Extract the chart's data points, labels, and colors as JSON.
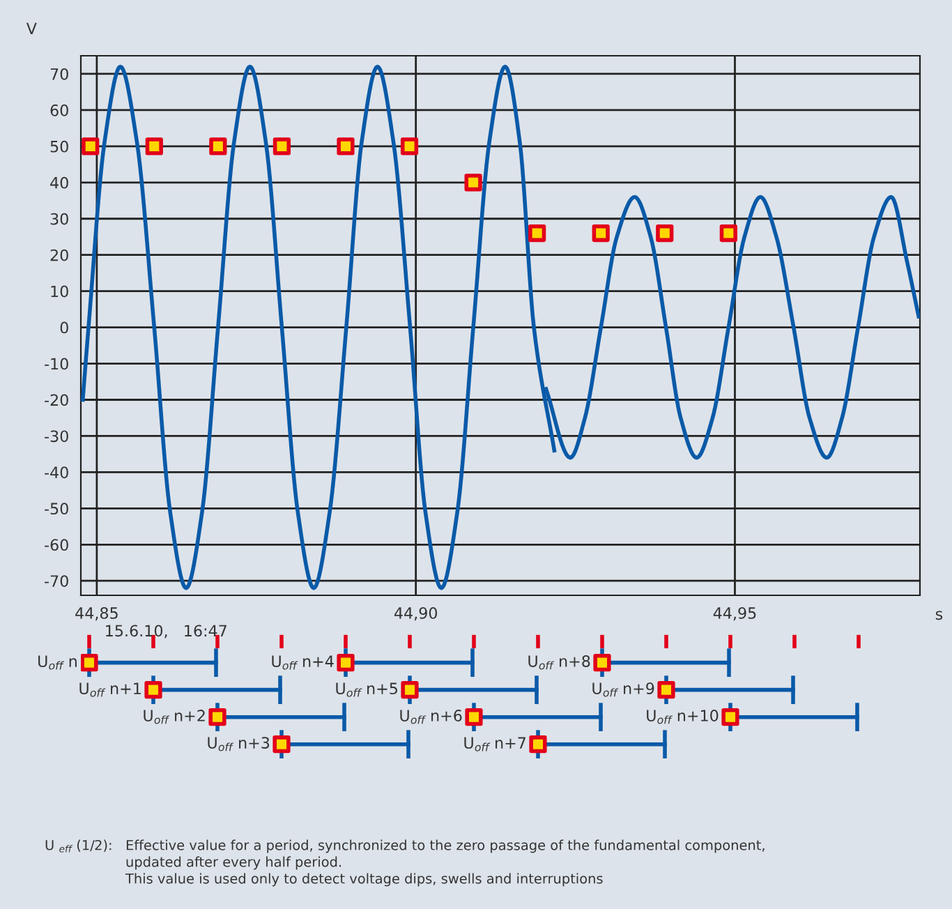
{
  "chart_data": [
    {
      "type": "line",
      "ylabel": "V",
      "xlabel": "s",
      "xlim": [
        44.8475,
        44.979
      ],
      "ylim": [
        -74,
        75
      ],
      "xticks": [
        {
          "value": 44.85,
          "label": "44,85"
        },
        {
          "value": 44.9,
          "label": "44,90"
        },
        {
          "value": 44.95,
          "label": "44,95"
        }
      ],
      "yticks": [
        -70,
        -60,
        -50,
        -40,
        -30,
        -20,
        -10,
        0,
        10,
        20,
        30,
        40,
        50,
        60,
        70
      ],
      "grid": true,
      "series": [
        {
          "type": "line",
          "color": "#0a5aa8",
          "x": [
            44.8478,
            44.8487,
            44.8512,
            44.8537,
            44.8563,
            44.859,
            44.8615,
            44.864,
            44.8665,
            44.869,
            44.8715,
            44.874,
            44.8765,
            44.879,
            44.8815,
            44.884,
            44.8865,
            44.8891,
            44.8915,
            44.894,
            44.8965,
            44.8991,
            44.9015,
            44.904,
            44.9065,
            44.909,
            44.9115,
            44.914,
            44.9163,
            44.9185,
            44.9217
          ],
          "values": [
            -20,
            0,
            51,
            72,
            51,
            0,
            -51,
            -72,
            -51,
            0,
            51,
            72,
            51,
            0,
            -51,
            -72,
            -51,
            0,
            51,
            72,
            51,
            0,
            -51,
            -72,
            -51,
            0,
            51,
            72,
            51,
            0,
            -34
          ]
        },
        {
          "type": "line",
          "color": "#0a5aa8",
          "x": [
            44.9204,
            44.9242,
            44.9265,
            44.929,
            44.9315,
            44.9343,
            44.9368,
            44.9392,
            44.9415,
            44.944,
            44.9465,
            44.949,
            44.9515,
            44.954,
            44.9565,
            44.9592,
            44.9617,
            44.9644,
            44.9668,
            44.9693,
            44.9718,
            44.9745,
            44.977,
            44.9788
          ],
          "values": [
            -17,
            -36,
            -25,
            0,
            25,
            36,
            25,
            0,
            -25,
            -36,
            -25,
            0,
            25,
            36,
            25,
            0,
            -25,
            -36,
            -25,
            0,
            25,
            36,
            18,
            3
          ]
        },
        {
          "type": "scatter",
          "marker": "square",
          "color": "#e2001a",
          "x": [
            44.849,
            44.859,
            44.869,
            44.879,
            44.889,
            44.899,
            44.909,
            44.919,
            44.929,
            44.939,
            44.949
          ],
          "values": [
            50,
            50,
            50,
            50,
            50,
            50,
            40,
            26,
            26,
            26,
            26
          ]
        }
      ],
      "annotations": [
        "U $_{eff}$ (1/2):",
        "Effective value for a period, synchronized to the zero passage of the fundamental component,",
        "updated after every half period.",
        "This value is used only to detect voltage dips, swells and interruptions"
      ]
    },
    {
      "type": "other",
      "annotations": [
        "15.6.10,   16:47",
        "U$_{off}$ n",
        "U$_{off}$ n+1",
        "U$_{off}$ n+2",
        "U$_{off}$ n+3",
        "U$_{off}$ n+4",
        "U$_{off}$ n+5",
        "U$_{off}$ n+6",
        "U$_{off}$ n+7",
        "U$_{off}$ n+8",
        "U$_{off}$ n+9",
        "U$_{off}$ n+10"
      ]
    }
  ]
}
